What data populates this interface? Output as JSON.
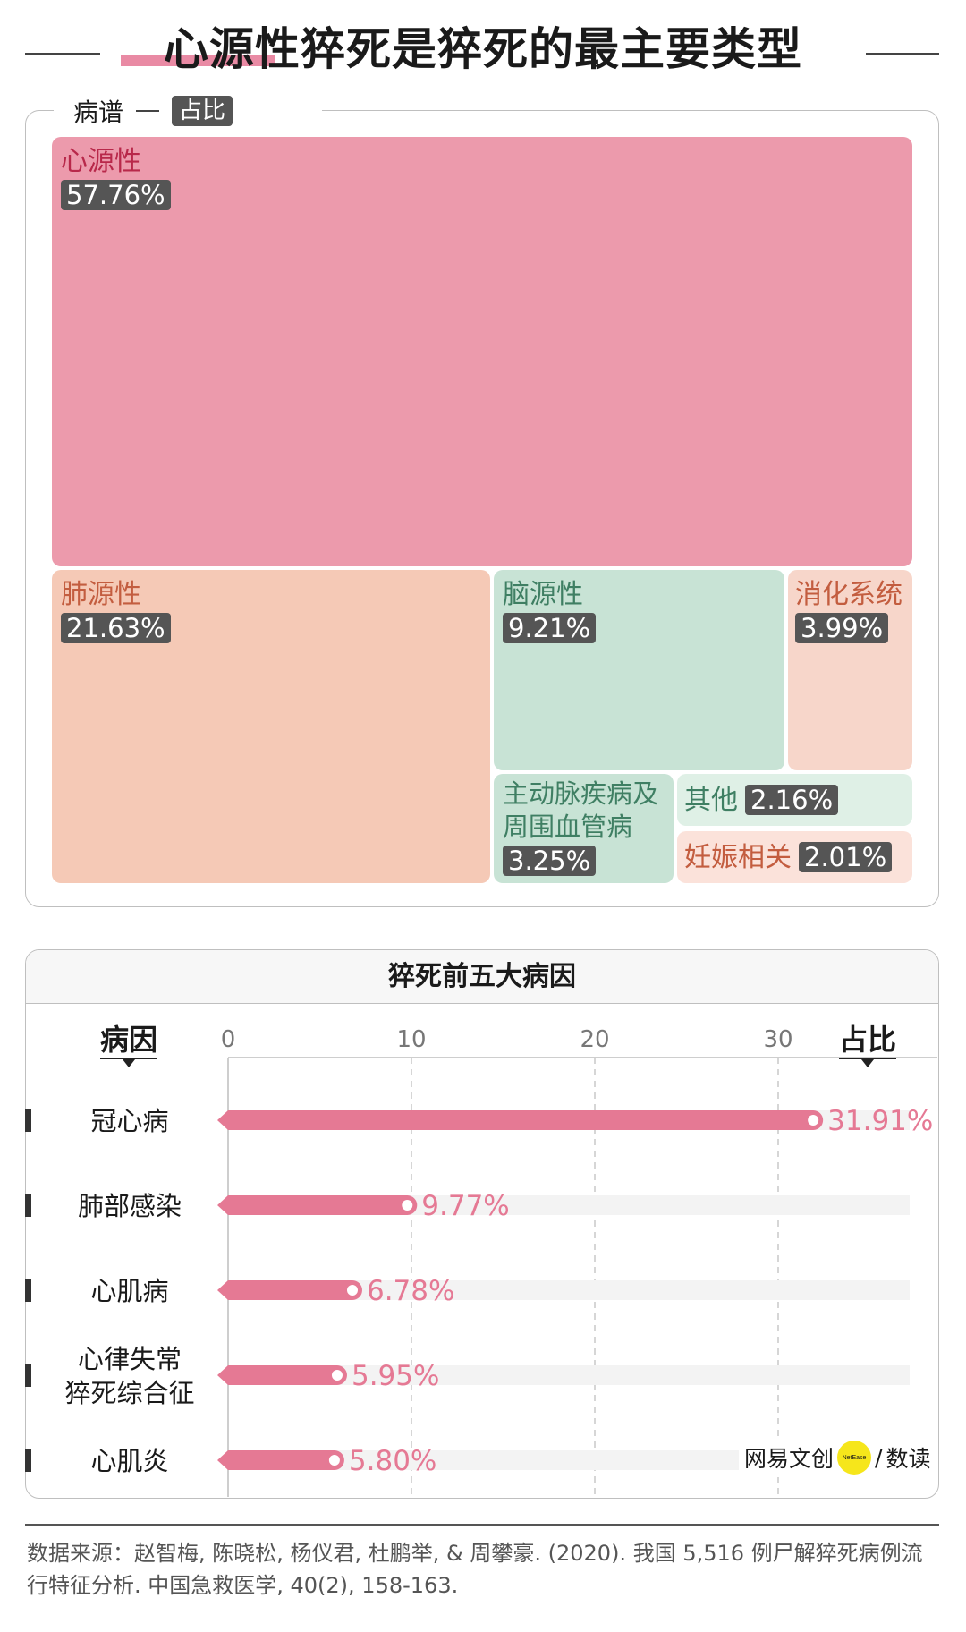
{
  "title": "心源性猝死是猝死的最主要类型",
  "legend": {
    "label": "病谱",
    "tag": "占比"
  },
  "treemap": [
    {
      "name": "心源性",
      "pct": "57.76%",
      "value": 57.76,
      "color": "#ec9aac"
    },
    {
      "name": "肺源性",
      "pct": "21.63%",
      "value": 21.63,
      "color": "#f5c9b6"
    },
    {
      "name": "脑源性",
      "pct": "9.21%",
      "value": 9.21,
      "color": "#c8e3d5"
    },
    {
      "name": "消化系统",
      "pct": "3.99%",
      "value": 3.99,
      "color": "#f7d6ca"
    },
    {
      "name": "主动脉疾病及周围血管病",
      "pct": "3.25%",
      "value": 3.25,
      "color": "#c8e3d5"
    },
    {
      "name": "其他",
      "pct": "2.16%",
      "value": 2.16,
      "color": "#dff0e6"
    },
    {
      "name": "妊娠相关",
      "pct": "2.01%",
      "value": 2.01,
      "color": "#fbe2da"
    }
  ],
  "panel2": {
    "title": "猝死前五大病因",
    "col_left": "病因",
    "col_right": "占比"
  },
  "chart_data": {
    "type": "bar",
    "title": "猝死前五大病因",
    "xlabel": "占比",
    "ylabel": "病因",
    "categories": [
      "冠心病",
      "肺部感染",
      "心肌病",
      "心律失常\n猝死综合征",
      "心肌炎"
    ],
    "values": [
      31.91,
      9.77,
      6.78,
      5.95,
      5.8
    ],
    "value_labels": [
      "31.91%",
      "9.77%",
      "6.78%",
      "5.95%",
      "5.80%"
    ],
    "x_ticks": [
      "0",
      "10",
      "20",
      "30"
    ],
    "xlim": [
      0,
      37.5
    ],
    "grid": "vertical dashed",
    "bar_color": "#e57994"
  },
  "brand": {
    "left": "网易文创",
    "circle": "NetEase",
    "slash": "/",
    "right": "数读"
  },
  "source": "数据来源：赵智梅, 陈晓松, 杨仪君, 杜鹏举, & 周攀豪. (2020). 我国 5,516 例尸解猝死病例流行特征分析. 中国急救医学, 40(2), 158-163."
}
